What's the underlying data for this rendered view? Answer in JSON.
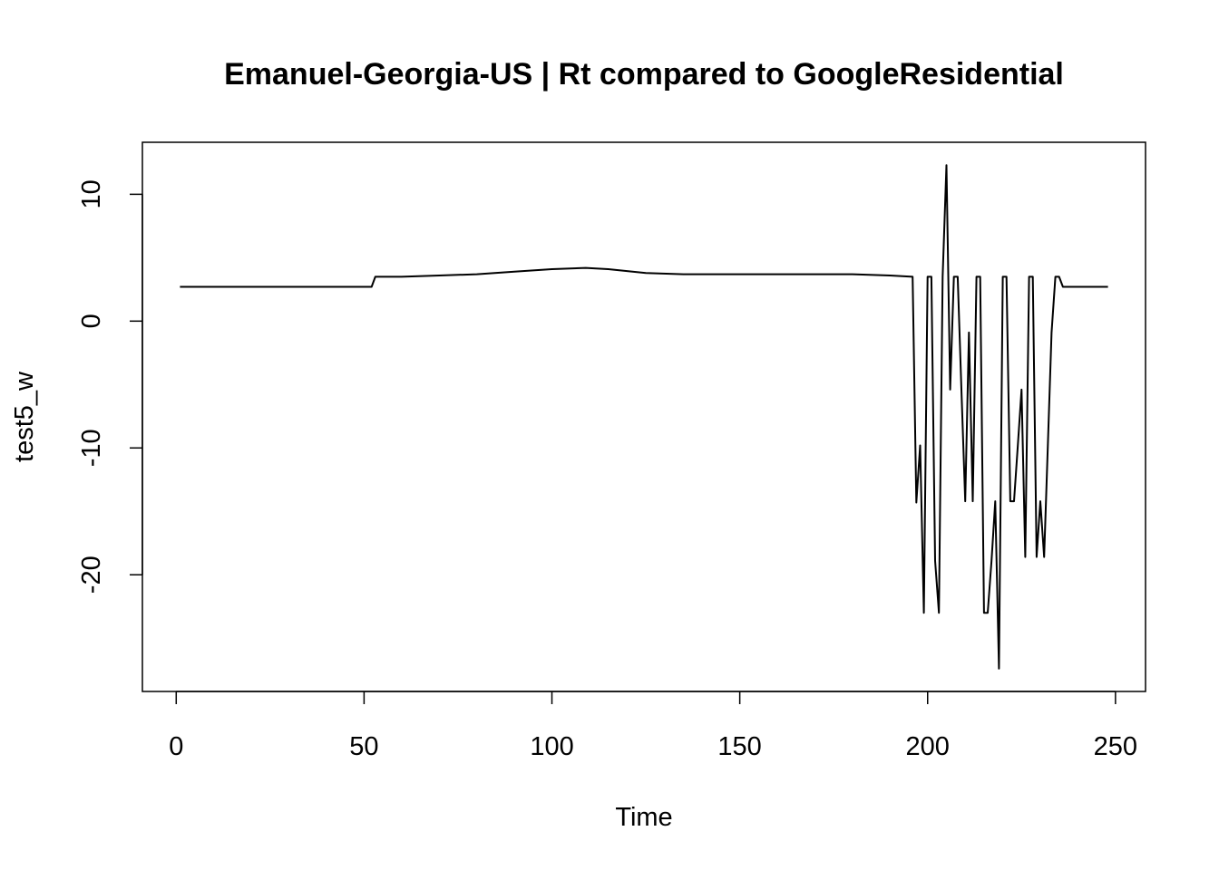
{
  "chart_data": {
    "type": "line",
    "title": "Emanuel-Georgia-US | Rt compared to GoogleResidential",
    "xlabel": "Time",
    "ylabel": "test5_w",
    "xlim": [
      -9,
      258
    ],
    "ylim": [
      -29.2,
      14.1
    ],
    "x_ticks": [
      0,
      50,
      100,
      150,
      200,
      250
    ],
    "x_tick_labels": [
      "0",
      "50",
      "100",
      "150",
      "200",
      "250"
    ],
    "y_ticks": [
      -20,
      -10,
      0,
      10
    ],
    "y_tick_labels": [
      "-20",
      "-10",
      "0",
      "10"
    ],
    "grid": false,
    "legend": "none",
    "line_color": "#000000",
    "series": [
      {
        "x": [
          1,
          52,
          53,
          60,
          70,
          80,
          90,
          100,
          109,
          115,
          125,
          135,
          150,
          165,
          180,
          190,
          196,
          197,
          198,
          199,
          200,
          201,
          202,
          203,
          204,
          205,
          206,
          207,
          208,
          209,
          210,
          211,
          212,
          213,
          214,
          215,
          216,
          217,
          218,
          219,
          220,
          221,
          222,
          223,
          224,
          225,
          226,
          227,
          228,
          229,
          230,
          231,
          232,
          233,
          234,
          235,
          236,
          237,
          248
        ],
        "y": [
          2.7,
          2.7,
          3.5,
          3.5,
          3.6,
          3.7,
          3.9,
          4.1,
          4.2,
          4.1,
          3.8,
          3.7,
          3.7,
          3.7,
          3.7,
          3.6,
          3.5,
          -14.3,
          -9.8,
          -23.0,
          3.5,
          3.5,
          -18.9,
          -23.0,
          3.5,
          12.3,
          -5.4,
          3.5,
          3.5,
          -5.4,
          -14.2,
          -0.9,
          -14.2,
          3.5,
          3.5,
          -23.0,
          -23.0,
          -18.9,
          -14.2,
          -27.4,
          3.5,
          3.5,
          -14.2,
          -14.2,
          -9.8,
          -5.4,
          -18.6,
          3.5,
          3.5,
          -18.6,
          -14.2,
          -18.6,
          -9.8,
          -0.9,
          3.5,
          3.5,
          2.7,
          2.7,
          2.7
        ]
      }
    ]
  }
}
